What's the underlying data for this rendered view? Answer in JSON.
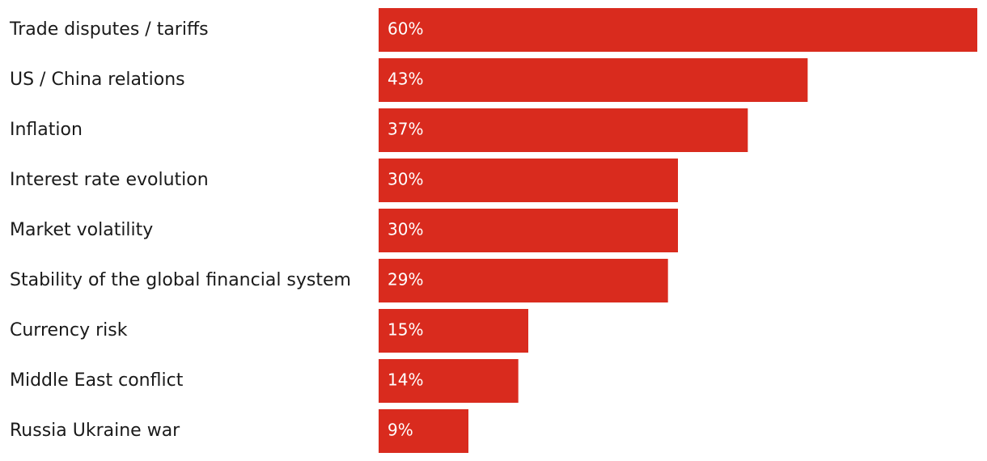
{
  "chart_data": {
    "type": "bar",
    "orientation": "horizontal",
    "title": "",
    "xlabel": "",
    "ylabel": "",
    "categories": [
      "Trade disputes / tariffs",
      "US / China relations",
      "Inflation",
      "Interest rate evolution",
      "Market volatility",
      "Stability of the global financial system",
      "Currency risk",
      "Middle East conflict",
      "Russia Ukraine war"
    ],
    "values": [
      60,
      43,
      37,
      30,
      30,
      29,
      15,
      14,
      9
    ],
    "value_labels": [
      "60%",
      "43%",
      "37%",
      "30%",
      "30%",
      "29%",
      "15%",
      "14%",
      "9%"
    ],
    "xlim": [
      0,
      60
    ],
    "grid": false,
    "legend": "none",
    "bar_color": "#d92b1e"
  }
}
